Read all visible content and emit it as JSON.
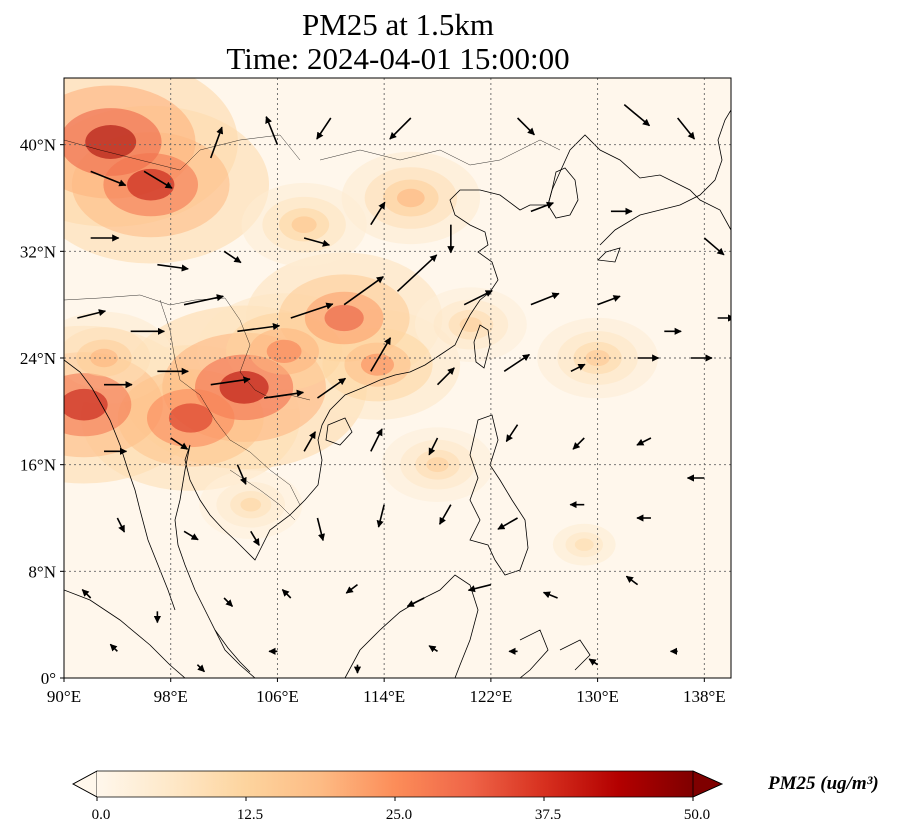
{
  "title_line1": "PM25 at 1.5km",
  "title_line2": "Time: 2024-04-01 15:00:00",
  "map": {
    "lon_range": [
      90,
      140
    ],
    "lat_range": [
      0,
      45
    ],
    "lon_ticks": [
      {
        "value": 90,
        "label": "90°E"
      },
      {
        "value": 98,
        "label": "98°E"
      },
      {
        "value": 106,
        "label": "106°E"
      },
      {
        "value": 114,
        "label": "114°E"
      },
      {
        "value": 122,
        "label": "122°E"
      },
      {
        "value": 130,
        "label": "130°E"
      },
      {
        "value": 138,
        "label": "138°E"
      }
    ],
    "lat_ticks": [
      {
        "value": 0,
        "label": "0°"
      },
      {
        "value": 8,
        "label": "8°N"
      },
      {
        "value": 16,
        "label": "16°N"
      },
      {
        "value": 24,
        "label": "24°N"
      },
      {
        "value": 32,
        "label": "32°N"
      },
      {
        "value": 40,
        "label": "40°N"
      }
    ],
    "gridlines": true,
    "colormap": "OrRd",
    "pollution_hotspots": [
      {
        "lon": 93.5,
        "lat": 40.2,
        "pm25": 46
      },
      {
        "lon": 96.5,
        "lat": 37.0,
        "pm25": 42
      },
      {
        "lon": 103.5,
        "lat": 21.8,
        "pm25": 44
      },
      {
        "lon": 91.5,
        "lat": 20.5,
        "pm25": 42
      },
      {
        "lon": 99.5,
        "lat": 19.5,
        "pm25": 38
      },
      {
        "lon": 111.0,
        "lat": 27.0,
        "pm25": 33
      },
      {
        "lon": 106.5,
        "lat": 24.5,
        "pm25": 28
      },
      {
        "lon": 113.5,
        "lat": 23.5,
        "pm25": 26
      },
      {
        "lon": 116.0,
        "lat": 36.0,
        "pm25": 20
      },
      {
        "lon": 108.0,
        "lat": 34.0,
        "pm25": 17
      },
      {
        "lon": 93.0,
        "lat": 24.0,
        "pm25": 20
      },
      {
        "lon": 118.0,
        "lat": 16.0,
        "pm25": 14
      },
      {
        "lon": 130.0,
        "lat": 24.0,
        "pm25": 16
      },
      {
        "lon": 129.0,
        "lat": 10.0,
        "pm25": 10
      },
      {
        "lon": 104.0,
        "lat": 13.0,
        "pm25": 12
      },
      {
        "lon": 120.5,
        "lat": 26.5,
        "pm25": 14
      }
    ],
    "wind_vectors": [
      {
        "lon": 92,
        "lat": 38,
        "u": 2.5,
        "v": -1.0
      },
      {
        "lon": 96,
        "lat": 38,
        "u": 2.0,
        "v": -1.2
      },
      {
        "lon": 101,
        "lat": 39,
        "u": 0.8,
        "v": 2.2
      },
      {
        "lon": 106,
        "lat": 40,
        "u": -0.8,
        "v": 2.0
      },
      {
        "lon": 110,
        "lat": 42,
        "u": -1.0,
        "v": -1.5
      },
      {
        "lon": 116,
        "lat": 42,
        "u": -1.5,
        "v": -1.5
      },
      {
        "lon": 124,
        "lat": 42,
        "u": 1.2,
        "v": -1.2
      },
      {
        "lon": 132,
        "lat": 43,
        "u": 1.8,
        "v": -1.5
      },
      {
        "lon": 136,
        "lat": 42,
        "u": 1.2,
        "v": -1.5
      },
      {
        "lon": 92,
        "lat": 33,
        "u": 2.0,
        "v": 0.0
      },
      {
        "lon": 97,
        "lat": 31,
        "u": 2.2,
        "v": -0.3
      },
      {
        "lon": 102,
        "lat": 32,
        "u": 1.2,
        "v": -0.8
      },
      {
        "lon": 108,
        "lat": 33,
        "u": 1.8,
        "v": -0.5
      },
      {
        "lon": 113,
        "lat": 34,
        "u": 1.0,
        "v": 1.6
      },
      {
        "lon": 119,
        "lat": 34,
        "u": 0.0,
        "v": -2.0
      },
      {
        "lon": 125,
        "lat": 35,
        "u": 1.6,
        "v": 0.6
      },
      {
        "lon": 131,
        "lat": 35,
        "u": 1.5,
        "v": 0.0
      },
      {
        "lon": 138,
        "lat": 33,
        "u": 1.4,
        "v": -1.2
      },
      {
        "lon": 91,
        "lat": 27,
        "u": 2.0,
        "v": 0.5
      },
      {
        "lon": 95,
        "lat": 26,
        "u": 2.4,
        "v": 0.0
      },
      {
        "lon": 99,
        "lat": 28,
        "u": 2.8,
        "v": 0.6
      },
      {
        "lon": 103,
        "lat": 26,
        "u": 3.0,
        "v": 0.4
      },
      {
        "lon": 107,
        "lat": 27,
        "u": 3.0,
        "v": 1.0
      },
      {
        "lon": 111,
        "lat": 28,
        "u": 2.8,
        "v": 2.0
      },
      {
        "lon": 115,
        "lat": 29,
        "u": 2.8,
        "v": 2.6
      },
      {
        "lon": 120,
        "lat": 28,
        "u": 2.0,
        "v": 1.0
      },
      {
        "lon": 125,
        "lat": 28,
        "u": 2.0,
        "v": 0.8
      },
      {
        "lon": 130,
        "lat": 28,
        "u": 1.6,
        "v": 0.6
      },
      {
        "lon": 135,
        "lat": 26,
        "u": 1.2,
        "v": 0.0
      },
      {
        "lon": 139,
        "lat": 27,
        "u": 1.2,
        "v": 0.0
      },
      {
        "lon": 93,
        "lat": 22,
        "u": 2.0,
        "v": 0.0
      },
      {
        "lon": 97,
        "lat": 23,
        "u": 2.2,
        "v": 0.0
      },
      {
        "lon": 101,
        "lat": 22,
        "u": 2.8,
        "v": 0.4
      },
      {
        "lon": 105,
        "lat": 21,
        "u": 2.8,
        "v": 0.4
      },
      {
        "lon": 109,
        "lat": 21,
        "u": 2.0,
        "v": 1.4
      },
      {
        "lon": 113,
        "lat": 23,
        "u": 1.4,
        "v": 2.4
      },
      {
        "lon": 118,
        "lat": 22,
        "u": 1.2,
        "v": 1.2
      },
      {
        "lon": 123,
        "lat": 23,
        "u": 1.8,
        "v": 1.2
      },
      {
        "lon": 128,
        "lat": 23,
        "u": 1.0,
        "v": 0.5
      },
      {
        "lon": 133,
        "lat": 24,
        "u": 1.5,
        "v": 0.0
      },
      {
        "lon": 137,
        "lat": 24,
        "u": 1.5,
        "v": 0.0
      },
      {
        "lon": 93,
        "lat": 17,
        "u": 1.6,
        "v": 0.0
      },
      {
        "lon": 98,
        "lat": 18,
        "u": 1.2,
        "v": -0.8
      },
      {
        "lon": 103,
        "lat": 16,
        "u": 0.6,
        "v": -1.4
      },
      {
        "lon": 108,
        "lat": 17,
        "u": 0.8,
        "v": 1.4
      },
      {
        "lon": 113,
        "lat": 17,
        "u": 0.8,
        "v": 1.6
      },
      {
        "lon": 118,
        "lat": 18,
        "u": -0.6,
        "v": -1.2
      },
      {
        "lon": 124,
        "lat": 19,
        "u": -0.8,
        "v": -1.2
      },
      {
        "lon": 129,
        "lat": 18,
        "u": -0.8,
        "v": -0.8
      },
      {
        "lon": 134,
        "lat": 18,
        "u": -1.0,
        "v": -0.5
      },
      {
        "lon": 138,
        "lat": 15,
        "u": -1.2,
        "v": 0.0
      },
      {
        "lon": 94,
        "lat": 12,
        "u": 0.5,
        "v": -1.0
      },
      {
        "lon": 99,
        "lat": 11,
        "u": 1.0,
        "v": -0.6
      },
      {
        "lon": 104,
        "lat": 11,
        "u": 0.6,
        "v": -1.0
      },
      {
        "lon": 109,
        "lat": 12,
        "u": 0.4,
        "v": -1.6
      },
      {
        "lon": 114,
        "lat": 13,
        "u": -0.4,
        "v": -1.6
      },
      {
        "lon": 119,
        "lat": 13,
        "u": -0.8,
        "v": -1.4
      },
      {
        "lon": 124,
        "lat": 12,
        "u": -1.4,
        "v": -0.8
      },
      {
        "lon": 129,
        "lat": 13,
        "u": -1.0,
        "v": 0.0
      },
      {
        "lon": 134,
        "lat": 12,
        "u": -1.0,
        "v": 0.0
      },
      {
        "lon": 92,
        "lat": 6,
        "u": -0.6,
        "v": 0.6
      },
      {
        "lon": 97,
        "lat": 5,
        "u": 0.0,
        "v": -0.8
      },
      {
        "lon": 102,
        "lat": 6,
        "u": 0.6,
        "v": -0.6
      },
      {
        "lon": 107,
        "lat": 6,
        "u": -0.6,
        "v": 0.6
      },
      {
        "lon": 112,
        "lat": 7,
        "u": -0.8,
        "v": -0.6
      },
      {
        "lon": 117,
        "lat": 6,
        "u": -1.2,
        "v": -0.6
      },
      {
        "lon": 122,
        "lat": 7,
        "u": -1.6,
        "v": -0.4
      },
      {
        "lon": 127,
        "lat": 6,
        "u": -1.0,
        "v": 0.4
      },
      {
        "lon": 133,
        "lat": 7,
        "u": -0.8,
        "v": 0.6
      },
      {
        "lon": 94,
        "lat": 2,
        "u": -0.5,
        "v": 0.5
      },
      {
        "lon": 100,
        "lat": 1,
        "u": 0.5,
        "v": -0.5
      },
      {
        "lon": 106,
        "lat": 2,
        "u": -0.6,
        "v": 0.0
      },
      {
        "lon": 112,
        "lat": 1,
        "u": 0.0,
        "v": -0.6
      },
      {
        "lon": 118,
        "lat": 2,
        "u": -0.6,
        "v": 0.4
      },
      {
        "lon": 124,
        "lat": 2,
        "u": -0.6,
        "v": 0.0
      },
      {
        "lon": 130,
        "lat": 1,
        "u": -0.6,
        "v": 0.4
      },
      {
        "lon": 136,
        "lat": 2,
        "u": -0.5,
        "v": 0.0
      }
    ]
  },
  "colorbar": {
    "min": 0,
    "max": 50,
    "tick_labels": [
      "0.0",
      "12.5",
      "25.0",
      "37.5",
      "50.0"
    ],
    "colors": [
      "#fff7ec",
      "#fee8c8",
      "#fdd49e",
      "#fdbb84",
      "#fc8d59",
      "#ef6548",
      "#d7301f",
      "#b30000",
      "#7f0000"
    ],
    "label": "PM25 (ug/m³)"
  }
}
